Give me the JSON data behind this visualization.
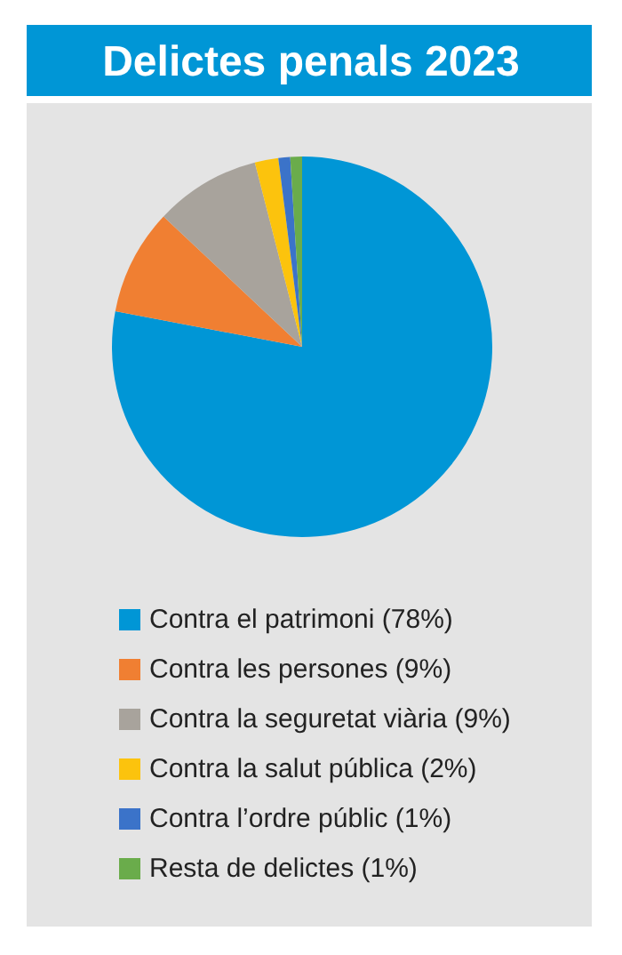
{
  "chart_data": {
    "type": "pie",
    "title": "Delictes penals 2023",
    "categories": [
      "Contra el patrimoni (78%)",
      "Contra les persones (9%)",
      "Contra la seguretat viària (9%)",
      "Contra la salut pública (2%)",
      "Contra l’ordre públic (1%)",
      "Resta de delictes (1%)"
    ],
    "values": [
      78,
      9,
      9,
      2,
      1,
      1
    ],
    "colors": [
      "#0096d6",
      "#f07f32",
      "#a8a39c",
      "#fcc30d",
      "#3b73c9",
      "#6aac4b"
    ],
    "legend": "bottom"
  }
}
